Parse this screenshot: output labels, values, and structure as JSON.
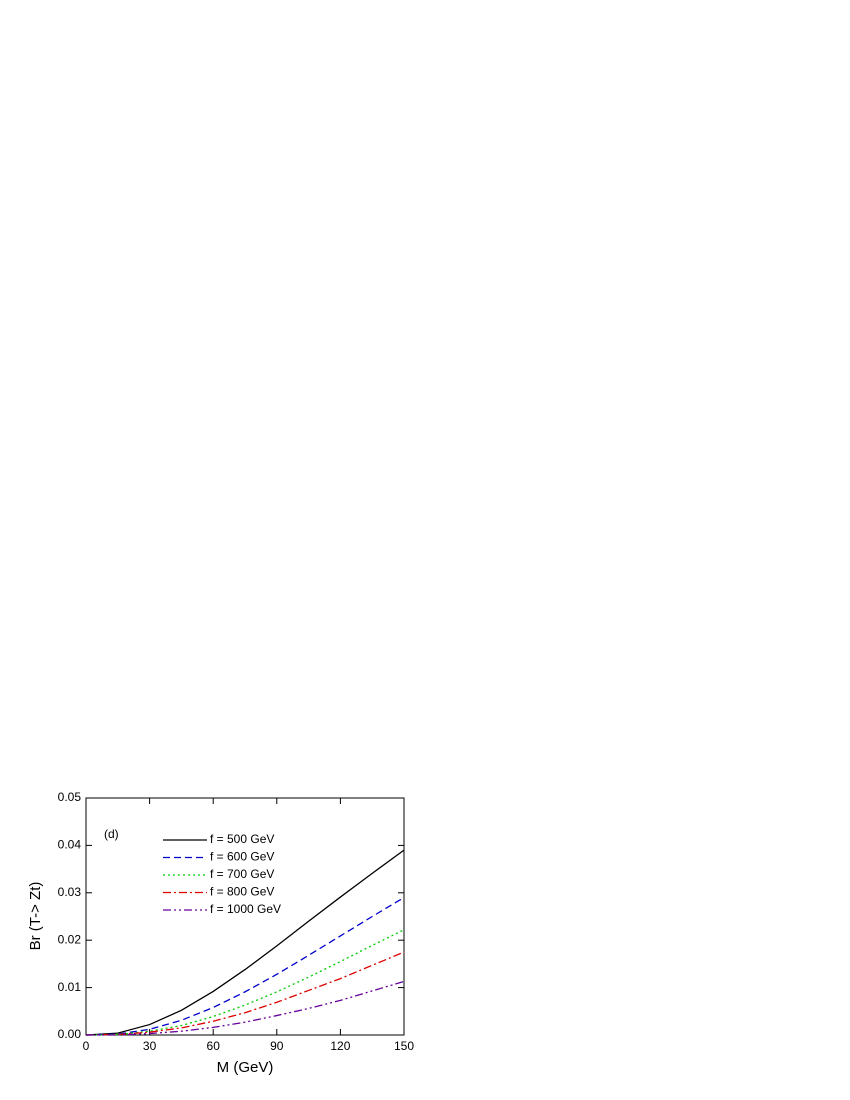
{
  "chart_data": {
    "type": "line",
    "annotation": "(d)",
    "x_label": "M (GeV)",
    "y_label": "Br (T-> Zt)",
    "x": [
      0,
      15,
      30,
      45,
      60,
      75,
      90,
      105,
      120,
      135,
      150
    ],
    "xlim": [
      0,
      150
    ],
    "xticks": [
      0,
      30,
      60,
      90,
      120,
      150
    ],
    "ylim": [
      0,
      0.05
    ],
    "yticks": [
      {
        "value": 0,
        "label": "0.00"
      },
      {
        "value": 0.01,
        "label": "0.01"
      },
      {
        "value": 0.02,
        "label": "0.02"
      },
      {
        "value": 0.03,
        "label": "0.03"
      },
      {
        "value": 0.04,
        "label": "0.04"
      },
      {
        "value": 0.05,
        "label": "0.05"
      }
    ],
    "series": [
      {
        "name": "f = 500 GeV",
        "color": "#000000",
        "dash": "solid",
        "values": [
          0,
          0.0004,
          0.0022,
          0.0052,
          0.0092,
          0.0138,
          0.0188,
          0.024,
          0.0291,
          0.0341,
          0.039
        ]
      },
      {
        "name": "f = 600 GeV",
        "color": "#0000cc",
        "dash": "dash",
        "values": [
          0,
          0.0002,
          0.0012,
          0.0031,
          0.0058,
          0.0091,
          0.0128,
          0.0168,
          0.0209,
          0.025,
          0.029
        ]
      },
      {
        "name": "f = 700 GeV",
        "color": "#00cc00",
        "dash": "dot",
        "values": [
          0,
          0.0001,
          0.0008,
          0.002,
          0.0039,
          0.0063,
          0.0091,
          0.0122,
          0.0155,
          0.0189,
          0.0222
        ]
      },
      {
        "name": "f = 800 GeV",
        "color": "#dd0000",
        "dash": "dashdot",
        "values": [
          0,
          0.0001,
          0.0006,
          0.0015,
          0.0029,
          0.0047,
          0.0069,
          0.0094,
          0.0119,
          0.0147,
          0.0175
        ]
      },
      {
        "name": "f = 1000 GeV",
        "color": "#660099",
        "dash": "dashdotdot",
        "values": [
          0,
          0,
          0.0003,
          0.0008,
          0.0016,
          0.0027,
          0.0041,
          0.0056,
          0.0073,
          0.0093,
          0.0113
        ]
      }
    ]
  }
}
